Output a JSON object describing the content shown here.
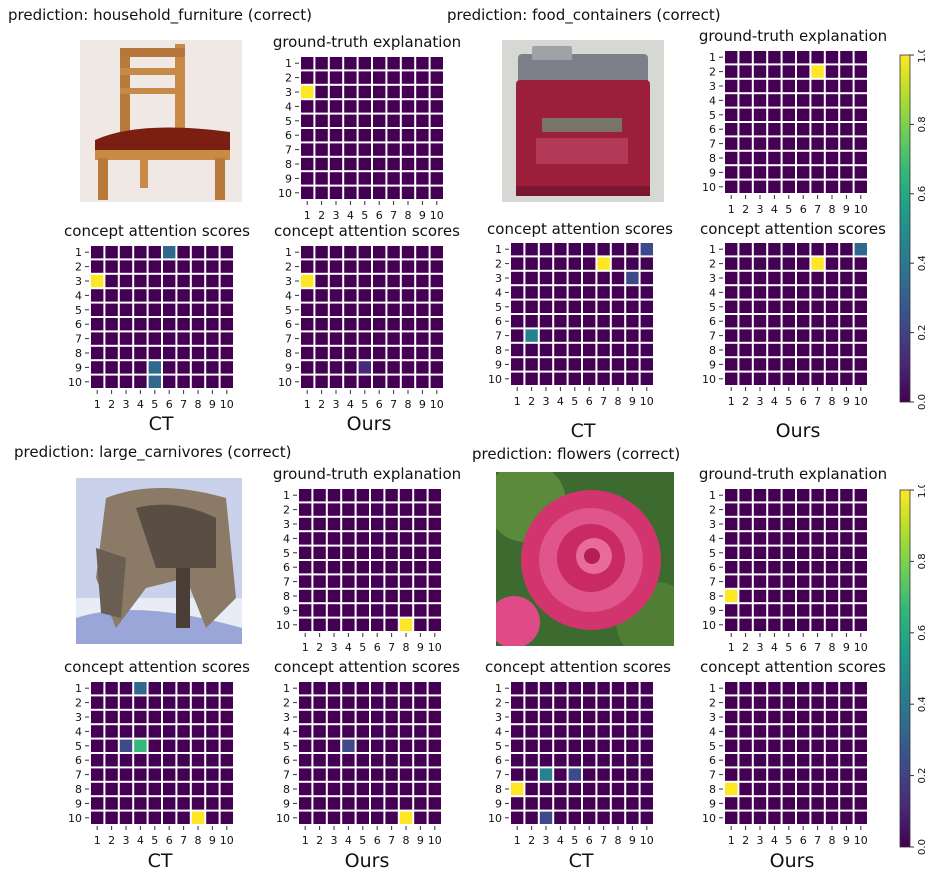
{
  "colors": {
    "purple": "#440154",
    "yellow": "#fde725"
  },
  "colormap": [
    "#440154",
    "#482878",
    "#3e4989",
    "#31688e",
    "#26828e",
    "#1f9e89",
    "#35b779",
    "#6ece58",
    "#b5de2b",
    "#fde725"
  ],
  "colorbar_ticks": [
    "0.0",
    "0.2",
    "0.4",
    "0.6",
    "0.8",
    "1.0"
  ],
  "heatmap_title_gt": "ground-truth explanation",
  "heatmap_title_attn": "concept attention scores",
  "method_ct": "CT",
  "method_ours": "Ours",
  "axis_ticks": [
    "1",
    "2",
    "3",
    "4",
    "5",
    "6",
    "7",
    "8",
    "9",
    "10"
  ],
  "panels": [
    {
      "prediction": "prediction: household_furniture (correct)",
      "image_subject": "chair",
      "gt": [
        [
          3,
          1,
          1.0
        ]
      ],
      "ct": [
        [
          1,
          6,
          0.35
        ],
        [
          3,
          1,
          1.0
        ],
        [
          9,
          5,
          0.3
        ],
        [
          10,
          5,
          0.3
        ]
      ],
      "ours": [
        [
          3,
          1,
          1.0
        ],
        [
          9,
          5,
          0.12
        ]
      ]
    },
    {
      "prediction": "prediction: food_containers (correct)",
      "image_subject": "tin can",
      "gt": [
        [
          2,
          7,
          1.0
        ]
      ],
      "ct": [
        [
          1,
          10,
          0.25
        ],
        [
          2,
          7,
          1.0
        ],
        [
          3,
          9,
          0.25
        ],
        [
          7,
          2,
          0.45
        ]
      ],
      "ours": [
        [
          1,
          10,
          0.3
        ],
        [
          2,
          7,
          1.0
        ]
      ]
    },
    {
      "prediction": "prediction: large_carnivores (correct)",
      "image_subject": "wolf",
      "gt": [
        [
          10,
          8,
          1.0
        ]
      ],
      "ct": [
        [
          1,
          4,
          0.35
        ],
        [
          5,
          3,
          0.25
        ],
        [
          5,
          4,
          0.65
        ],
        [
          10,
          8,
          1.0
        ]
      ],
      "ours": [
        [
          5,
          4,
          0.25
        ],
        [
          10,
          8,
          1.0
        ]
      ]
    },
    {
      "prediction": "prediction: flowers (correct)",
      "image_subject": "rose",
      "gt": [
        [
          8,
          1,
          1.0
        ]
      ],
      "ct": [
        [
          7,
          3,
          0.45
        ],
        [
          7,
          5,
          0.25
        ],
        [
          8,
          1,
          1.0
        ],
        [
          10,
          3,
          0.25
        ]
      ],
      "ours": [
        [
          8,
          1,
          1.0
        ]
      ]
    }
  ],
  "chart_data": {
    "type": "heatmap",
    "grid_size": 10,
    "scale": [
      0.0,
      1.0
    ],
    "colormap_name": "viridis",
    "panels": [
      {
        "prediction": "household_furniture (correct)",
        "ground_truth": [
          {
            "row": 3,
            "col": 1,
            "value": 1.0
          }
        ],
        "CT": [
          {
            "row": 1,
            "col": 6,
            "value": 0.35
          },
          {
            "row": 3,
            "col": 1,
            "value": 1.0
          },
          {
            "row": 9,
            "col": 5,
            "value": 0.3
          },
          {
            "row": 10,
            "col": 5,
            "value": 0.3
          }
        ],
        "Ours": [
          {
            "row": 3,
            "col": 1,
            "value": 1.0
          },
          {
            "row": 9,
            "col": 5,
            "value": 0.12
          }
        ]
      },
      {
        "prediction": "food_containers (correct)",
        "ground_truth": [
          {
            "row": 2,
            "col": 7,
            "value": 1.0
          }
        ],
        "CT": [
          {
            "row": 1,
            "col": 10,
            "value": 0.25
          },
          {
            "row": 2,
            "col": 7,
            "value": 1.0
          },
          {
            "row": 3,
            "col": 9,
            "value": 0.25
          },
          {
            "row": 7,
            "col": 2,
            "value": 0.45
          }
        ],
        "Ours": [
          {
            "row": 1,
            "col": 10,
            "value": 0.3
          },
          {
            "row": 2,
            "col": 7,
            "value": 1.0
          }
        ]
      },
      {
        "prediction": "large_carnivores (correct)",
        "ground_truth": [
          {
            "row": 10,
            "col": 8,
            "value": 1.0
          }
        ],
        "CT": [
          {
            "row": 1,
            "col": 4,
            "value": 0.35
          },
          {
            "row": 5,
            "col": 3,
            "value": 0.25
          },
          {
            "row": 5,
            "col": 4,
            "value": 0.65
          },
          {
            "row": 10,
            "col": 8,
            "value": 1.0
          }
        ],
        "Ours": [
          {
            "row": 5,
            "col": 4,
            "value": 0.25
          },
          {
            "row": 10,
            "col": 8,
            "value": 1.0
          }
        ]
      },
      {
        "prediction": "flowers (correct)",
        "ground_truth": [
          {
            "row": 8,
            "col": 1,
            "value": 1.0
          }
        ],
        "CT": [
          {
            "row": 7,
            "col": 3,
            "value": 0.45
          },
          {
            "row": 7,
            "col": 5,
            "value": 0.25
          },
          {
            "row": 8,
            "col": 1,
            "value": 1.0
          },
          {
            "row": 10,
            "col": 3,
            "value": 0.25
          }
        ],
        "Ours": [
          {
            "row": 8,
            "col": 1,
            "value": 1.0
          }
        ]
      }
    ]
  }
}
